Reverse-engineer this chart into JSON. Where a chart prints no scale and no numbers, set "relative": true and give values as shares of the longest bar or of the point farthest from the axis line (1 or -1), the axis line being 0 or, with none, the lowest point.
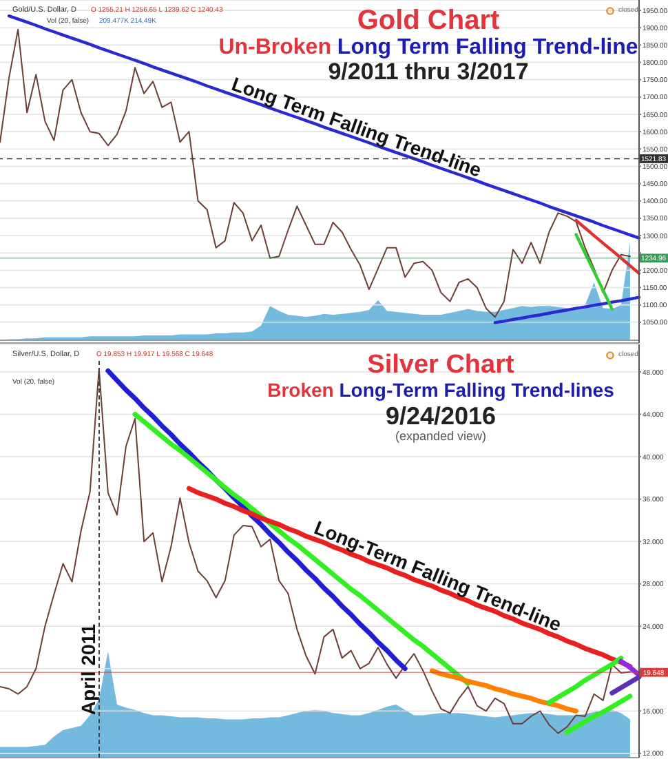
{
  "chart_data": [
    {
      "type": "line",
      "title": "Gold Chart",
      "subtitle": "Un-Broken Long Term Falling Trend-line",
      "annotations": [
        "9/2011 thru 3/2017",
        "Long Term Falling Trend-line",
        "Gold/U.S. Dollar, D",
        "O 1255.21 H 1256.65 L 1239.62 C 1240.43",
        "Vol (20, false)",
        "209.477K 214.49K",
        "closed"
      ],
      "categories": [
        null,
        null,
        null,
        null,
        null,
        null,
        null,
        null,
        null,
        null,
        null,
        null,
        null,
        null,
        null,
        null,
        null,
        null,
        null,
        null,
        null,
        null,
        null,
        null,
        null,
        null,
        null,
        null,
        null,
        null,
        null,
        null,
        null,
        null,
        null,
        null,
        null,
        null,
        null,
        null,
        null,
        null,
        null,
        null,
        null,
        null,
        null,
        null,
        null,
        null,
        null,
        null,
        null,
        null,
        null,
        null,
        null,
        null,
        null,
        null,
        null,
        null,
        null,
        null,
        null,
        null,
        null,
        null,
        null,
        null,
        null,
        null
      ],
      "series": [
        {
          "color": "#6b3f35",
          "values": [
            1570,
            1755,
            1895,
            1655,
            1765,
            1630,
            1575,
            1720,
            1750,
            1655,
            1600,
            1595,
            1560,
            1592,
            1660,
            1785,
            1710,
            1745,
            1670,
            1685,
            1570,
            1600,
            1400,
            1375,
            1265,
            1285,
            1395,
            1365,
            1285,
            1330,
            1235,
            1240,
            1315,
            1385,
            1330,
            1275,
            1275,
            1338,
            1310,
            1260,
            1215,
            1145,
            1205,
            1265,
            1265,
            1180,
            1220,
            1225,
            1200,
            1135,
            1110,
            1165,
            1175,
            1150,
            1090,
            1065,
            1110,
            1260,
            1220,
            1280,
            1220,
            1310,
            1365,
            1356,
            1340,
            1265,
            1205,
            1135,
            1200,
            1245,
            1240,
            null
          ]
        },
        {
          "color": "#2a2ad0",
          "values": [
            null,
            1934,
            1925,
            1916,
            1907,
            1897,
            1888,
            1879,
            1870,
            1861,
            1852,
            1842,
            1833,
            1824,
            1815,
            1806,
            1797,
            1787,
            1778,
            1769,
            1760,
            1751,
            1742,
            1732,
            1723,
            1714,
            1705,
            1696,
            1687,
            1678,
            1668,
            1659,
            1650,
            1641,
            1632,
            1623,
            1613,
            1604,
            1595,
            1586,
            1577,
            1568,
            1558,
            1549,
            1540,
            1531,
            1522,
            1513,
            1503,
            1494,
            1485,
            1476,
            1467,
            1458,
            1448,
            1439,
            1430,
            1421,
            1412,
            1403,
            1394,
            1384,
            1375,
            1366,
            1357,
            1348,
            1339,
            1329,
            1320,
            1311,
            1302,
            1293
          ]
        },
        {
          "color": "#2a2ad0",
          "values": [
            null,
            null,
            null,
            null,
            null,
            null,
            null,
            null,
            null,
            null,
            null,
            null,
            null,
            null,
            null,
            null,
            null,
            null,
            null,
            null,
            null,
            null,
            null,
            null,
            null,
            null,
            null,
            null,
            null,
            null,
            null,
            null,
            null,
            null,
            null,
            null,
            null,
            null,
            null,
            null,
            null,
            null,
            null,
            null,
            null,
            null,
            null,
            null,
            null,
            null,
            null,
            null,
            null,
            null,
            null,
            1049,
            1053,
            1058,
            1062,
            1067,
            1071,
            1076,
            1081,
            1085,
            1090,
            1094,
            1099,
            1103,
            1108,
            1112,
            1117,
            1122
          ]
        },
        {
          "color": "#e03030",
          "values": [
            null,
            null,
            null,
            null,
            null,
            null,
            null,
            null,
            null,
            null,
            null,
            null,
            null,
            null,
            null,
            null,
            null,
            null,
            null,
            null,
            null,
            null,
            null,
            null,
            null,
            null,
            null,
            null,
            null,
            null,
            null,
            null,
            null,
            null,
            null,
            null,
            null,
            null,
            null,
            null,
            null,
            null,
            null,
            null,
            null,
            null,
            null,
            null,
            null,
            null,
            null,
            null,
            null,
            null,
            null,
            null,
            null,
            null,
            null,
            null,
            null,
            null,
            null,
            null,
            1344,
            1322,
            1300,
            1278,
            1257,
            1235,
            1213,
            1191
          ]
        },
        {
          "color": "#33cc33",
          "values": [
            null,
            null,
            null,
            null,
            null,
            null,
            null,
            null,
            null,
            null,
            null,
            null,
            null,
            null,
            null,
            null,
            null,
            null,
            null,
            null,
            null,
            null,
            null,
            null,
            null,
            null,
            null,
            null,
            null,
            null,
            null,
            null,
            null,
            null,
            null,
            null,
            null,
            null,
            null,
            null,
            null,
            null,
            null,
            null,
            null,
            null,
            null,
            null,
            null,
            null,
            null,
            null,
            null,
            null,
            null,
            null,
            null,
            null,
            null,
            null,
            null,
            null,
            null,
            null,
            1303,
            1249,
            1196,
            1142,
            1088,
            null,
            null,
            null
          ]
        }
      ],
      "ylim": [
        990,
        1980
      ],
      "yticks": [
        {
          "value": 1050,
          "label": "1050.00"
        },
        {
          "value": 1100,
          "label": "1100.00"
        },
        {
          "value": 1150,
          "label": "1150.00"
        },
        {
          "value": 1200,
          "label": "1200.00"
        },
        {
          "value": 1250,
          "label": null
        },
        {
          "value": 1300,
          "label": "1300.00"
        },
        {
          "value": 1350,
          "label": "1350.00"
        },
        {
          "value": 1400,
          "label": "1400.00"
        },
        {
          "value": 1450,
          "label": "1450.00"
        },
        {
          "value": 1500,
          "label": "1500.00"
        },
        {
          "value": 1550,
          "label": "1550.00"
        },
        {
          "value": 1600,
          "label": "1600.00"
        },
        {
          "value": 1650,
          "label": "1650.00"
        },
        {
          "value": 1700,
          "label": "1700.00"
        },
        {
          "value": 1750,
          "label": "1750.00"
        },
        {
          "value": 1800,
          "label": "1800.00"
        },
        {
          "value": 1850,
          "label": "1850.00"
        },
        {
          "value": 1900,
          "label": "1900.00"
        },
        {
          "value": 1950,
          "label": "1950.00"
        }
      ],
      "grid": "y",
      "tick_labels": "y",
      "ref_lines": [
        {
          "axis": "y",
          "value": 1521.83,
          "label": "1521.83",
          "color": "#333333",
          "line_style": "dashed"
        },
        {
          "axis": "y",
          "value": 1234.96,
          "label": "1234.96",
          "color": "#3d9a5b"
        }
      ]
    },
    {
      "type": "area",
      "relative": true,
      "categories": [
        null,
        null,
        null,
        null,
        null,
        null,
        null,
        null,
        null,
        null,
        null,
        null,
        null,
        null,
        null,
        null,
        null,
        null,
        null,
        null,
        null,
        null,
        null,
        null,
        null,
        null,
        null,
        null,
        null,
        null,
        null,
        null,
        null,
        null,
        null,
        null,
        null,
        null,
        null,
        null,
        null,
        null,
        null,
        null,
        null,
        null,
        null,
        null,
        null,
        null,
        null,
        null,
        null,
        null,
        null,
        null,
        null,
        null,
        null,
        null,
        null,
        null,
        null,
        null,
        null,
        null,
        null,
        null,
        null,
        null,
        null,
        null
      ],
      "values": [
        0,
        0.01,
        0.01,
        0.02,
        0.02,
        0.03,
        0.03,
        0.03,
        0.03,
        0.03,
        0.04,
        0.04,
        0.04,
        0.04,
        0.04,
        0.04,
        0.05,
        0.05,
        0.05,
        0.05,
        0.06,
        0.06,
        0.06,
        0.06,
        0.07,
        0.07,
        0.08,
        0.08,
        0.09,
        0.15,
        0.35,
        0.3,
        0.26,
        0.25,
        0.24,
        0.25,
        0.27,
        0.26,
        0.27,
        0.28,
        0.29,
        0.31,
        0.41,
        0.3,
        0.29,
        0.28,
        0.27,
        0.26,
        0.26,
        0.26,
        0.28,
        0.3,
        0.32,
        0.3,
        0.29,
        0.29,
        0.31,
        0.33,
        0.35,
        0.34,
        0.35,
        0.35,
        0.34,
        0.33,
        0.32,
        0.36,
        0.59,
        0.33,
        0.32,
        0.36,
        1,
        null
      ],
      "color": "#5aaed8",
      "tick_labels": false
    },
    {
      "type": "line",
      "title": "Silver Chart",
      "subtitle": "Broken Long-Term Falling Trend-lines",
      "annotations": [
        "9/24/2016",
        "(expanded view)",
        "Long-Term Falling Trend-line",
        "Silver/U.S. Dollar, D",
        "O 19.853 H 19.917 L 19.568 C 19.648",
        "Vol (20, false)",
        "closed",
        "April 2011"
      ],
      "categories": [
        null,
        null,
        null,
        null,
        null,
        null,
        null,
        null,
        null,
        null,
        null,
        null,
        null,
        null,
        null,
        null,
        null,
        null,
        null,
        null,
        null,
        null,
        null,
        null,
        null,
        null,
        null,
        null,
        null,
        null,
        null,
        null,
        null,
        null,
        null,
        null,
        null,
        null,
        null,
        null,
        null,
        null,
        null,
        null,
        null,
        null,
        null,
        null,
        null,
        null,
        null,
        null,
        null,
        null,
        null,
        null,
        null,
        null,
        null,
        null,
        null,
        null,
        null,
        null,
        null,
        null,
        null,
        null,
        null,
        null,
        null,
        null
      ],
      "series": [
        {
          "color": "#6b3f35",
          "values": [
            18.3,
            18.1,
            17.6,
            18.3,
            20.0,
            24.0,
            27.0,
            29.9,
            28.2,
            33.0,
            36.7,
            48.3,
            36.6,
            34.5,
            41.0,
            43.6,
            32.0,
            32.8,
            28.2,
            31.5,
            36.1,
            31.9,
            29.2,
            28.3,
            26.7,
            28.3,
            32.6,
            33.5,
            33.4,
            31.5,
            32.2,
            28.3,
            27.1,
            23.7,
            21.2,
            19.5,
            23.0,
            23.7,
            21.0,
            21.7,
            20.0,
            20.5,
            22.0,
            20.4,
            19.1,
            20.3,
            21.4,
            19.8,
            17.9,
            16.2,
            15.8,
            17.2,
            18.3,
            16.5,
            16.0,
            17.2,
            16.7,
            14.8,
            14.8,
            15.5,
            16.0,
            14.7,
            13.9,
            14.5,
            15.6,
            15.5,
            17.6,
            17.0,
            20.4,
            19.6,
            19.7,
            null
          ]
        },
        {
          "color": "#1f1fd6",
          "values": [
            null,
            null,
            null,
            null,
            null,
            null,
            null,
            null,
            null,
            null,
            null,
            null,
            48.1,
            47.2,
            46.3,
            45.5,
            44.6,
            43.8,
            42.9,
            42.1,
            41.2,
            40.4,
            39.5,
            38.7,
            37.8,
            37.0,
            36.1,
            35.3,
            34.4,
            33.6,
            32.7,
            31.9,
            31.0,
            30.2,
            29.3,
            28.5,
            27.6,
            26.8,
            25.9,
            25.1,
            24.2,
            23.4,
            22.5,
            21.7,
            20.8,
            20.0,
            null,
            null,
            null,
            null,
            null,
            null,
            null,
            null,
            null,
            null,
            null,
            null,
            null,
            null,
            null,
            null,
            null,
            null,
            null,
            null,
            null,
            null,
            null,
            null,
            null,
            null
          ]
        },
        {
          "color": "#33ee22",
          "values": [
            null,
            null,
            null,
            null,
            null,
            null,
            null,
            null,
            null,
            null,
            null,
            null,
            null,
            null,
            null,
            44.0,
            43.3,
            42.6,
            41.9,
            41.2,
            40.6,
            39.9,
            39.2,
            38.5,
            37.8,
            37.1,
            36.4,
            35.8,
            35.1,
            34.4,
            33.7,
            33.0,
            32.3,
            31.7,
            31.0,
            30.3,
            29.6,
            28.9,
            28.2,
            27.5,
            26.9,
            26.2,
            25.5,
            24.8,
            24.1,
            23.4,
            22.7,
            22.1,
            21.4,
            20.7,
            20.0,
            19.3,
            18.6,
            null,
            null,
            null,
            null,
            null,
            null,
            null,
            null,
            null,
            null,
            null,
            null,
            null,
            null,
            null,
            null,
            null,
            null,
            null
          ]
        },
        {
          "color": "#e82020",
          "values": [
            null,
            null,
            null,
            null,
            null,
            null,
            null,
            null,
            null,
            null,
            null,
            null,
            null,
            null,
            null,
            null,
            null,
            null,
            null,
            null,
            null,
            37.0,
            36.6,
            36.3,
            36.0,
            35.6,
            35.3,
            34.9,
            34.6,
            34.2,
            33.9,
            33.6,
            33.2,
            32.9,
            32.5,
            32.2,
            31.9,
            31.5,
            31.2,
            30.8,
            30.5,
            30.1,
            29.8,
            29.5,
            29.1,
            28.8,
            28.4,
            28.1,
            27.8,
            27.4,
            27.1,
            26.7,
            26.4,
            26.0,
            25.7,
            25.4,
            25.0,
            24.7,
            24.3,
            24.0,
            23.7,
            23.3,
            23.0,
            22.6,
            22.3,
            21.9,
            21.6,
            21.3,
            20.9,
            20.6,
            20.2,
            null
          ]
        },
        {
          "color": "#ff8000",
          "values": [
            null,
            null,
            null,
            null,
            null,
            null,
            null,
            null,
            null,
            null,
            null,
            null,
            null,
            null,
            null,
            null,
            null,
            null,
            null,
            null,
            null,
            null,
            null,
            null,
            null,
            null,
            null,
            null,
            null,
            null,
            null,
            null,
            null,
            null,
            null,
            null,
            null,
            null,
            null,
            null,
            null,
            null,
            null,
            null,
            null,
            null,
            null,
            null,
            19.8,
            19.5,
            19.3,
            19.1,
            18.8,
            18.6,
            18.4,
            18.1,
            17.9,
            17.6,
            17.4,
            17.2,
            16.9,
            16.7,
            16.5,
            16.2,
            16.0,
            null,
            null,
            null,
            null,
            null,
            null,
            null
          ]
        },
        {
          "color": "#33ee22",
          "values": [
            null,
            null,
            null,
            null,
            null,
            null,
            null,
            null,
            null,
            null,
            null,
            null,
            null,
            null,
            null,
            null,
            null,
            null,
            null,
            null,
            null,
            null,
            null,
            null,
            null,
            null,
            null,
            null,
            null,
            null,
            null,
            null,
            null,
            null,
            null,
            null,
            null,
            null,
            null,
            null,
            null,
            null,
            null,
            null,
            null,
            null,
            null,
            null,
            null,
            null,
            null,
            null,
            null,
            null,
            null,
            null,
            null,
            null,
            null,
            null,
            null,
            16.8,
            17.3,
            17.8,
            18.3,
            18.9,
            19.4,
            19.9,
            20.4,
            21.0,
            null,
            null
          ]
        },
        {
          "color": "#33ee22",
          "values": [
            null,
            null,
            null,
            null,
            null,
            null,
            null,
            null,
            null,
            null,
            null,
            null,
            null,
            null,
            null,
            null,
            null,
            null,
            null,
            null,
            null,
            null,
            null,
            null,
            null,
            null,
            null,
            null,
            null,
            null,
            null,
            null,
            null,
            null,
            null,
            null,
            null,
            null,
            null,
            null,
            null,
            null,
            null,
            null,
            null,
            null,
            null,
            null,
            null,
            null,
            null,
            null,
            null,
            null,
            null,
            null,
            null,
            null,
            null,
            null,
            null,
            null,
            null,
            14.0,
            14.5,
            15.0,
            15.5,
            15.9,
            16.4,
            16.9,
            17.4,
            null
          ]
        },
        {
          "color": "#8a2be2",
          "values": [
            null,
            null,
            null,
            null,
            null,
            null,
            null,
            null,
            null,
            null,
            null,
            null,
            null,
            null,
            null,
            null,
            null,
            null,
            null,
            null,
            null,
            null,
            null,
            null,
            null,
            null,
            null,
            null,
            null,
            null,
            null,
            null,
            null,
            null,
            null,
            null,
            null,
            null,
            null,
            null,
            null,
            null,
            null,
            null,
            null,
            null,
            null,
            null,
            null,
            null,
            null,
            null,
            null,
            null,
            null,
            null,
            null,
            null,
            null,
            null,
            null,
            null,
            null,
            null,
            null,
            null,
            null,
            null,
            null,
            20.7,
            20.1,
            19.4
          ]
        },
        {
          "color": "#5a30b8",
          "values": [
            null,
            null,
            null,
            null,
            null,
            null,
            null,
            null,
            null,
            null,
            null,
            null,
            null,
            null,
            null,
            null,
            null,
            null,
            null,
            null,
            null,
            null,
            null,
            null,
            null,
            null,
            null,
            null,
            null,
            null,
            null,
            null,
            null,
            null,
            null,
            null,
            null,
            null,
            null,
            null,
            null,
            null,
            null,
            null,
            null,
            null,
            null,
            null,
            null,
            null,
            null,
            null,
            null,
            null,
            null,
            null,
            null,
            null,
            null,
            null,
            null,
            null,
            null,
            null,
            null,
            null,
            null,
            null,
            17.7,
            18.2,
            18.7,
            19.2
          ]
        }
      ],
      "ylim": [
        11.6,
        50.6
      ],
      "yticks": [
        {
          "value": 12,
          "label": "12.000"
        },
        {
          "value": 16,
          "label": "16.000"
        },
        {
          "value": 20,
          "label": null
        },
        {
          "value": 24,
          "label": "24.000"
        },
        {
          "value": 28,
          "label": "28.000"
        },
        {
          "value": 32,
          "label": "32.000"
        },
        {
          "value": 36,
          "label": "36.000"
        },
        {
          "value": 40,
          "label": "40.000"
        },
        {
          "value": 44,
          "label": "44.000"
        },
        {
          "value": 48,
          "label": "48.000"
        }
      ],
      "grid": "y",
      "tick_labels": "y",
      "ref_lines": [
        {
          "axis": "y",
          "value": 19.648,
          "label": "19.648",
          "color": "#d93b3b"
        }
      ]
    },
    {
      "type": "area",
      "relative": true,
      "categories": [
        null,
        null,
        null,
        null,
        null,
        null,
        null,
        null,
        null,
        null,
        null,
        null,
        null,
        null,
        null,
        null,
        null,
        null,
        null,
        null,
        null,
        null,
        null,
        null,
        null,
        null,
        null,
        null,
        null,
        null,
        null,
        null,
        null,
        null,
        null,
        null,
        null,
        null,
        null,
        null,
        null,
        null,
        null,
        null,
        null,
        null,
        null,
        null,
        null,
        null,
        null,
        null,
        null,
        null,
        null,
        null,
        null,
        null,
        null,
        null,
        null,
        null,
        null,
        null,
        null,
        null,
        null,
        null,
        null,
        null,
        null,
        null
      ],
      "values": [
        0.1,
        0.1,
        0.1,
        0.1,
        0.11,
        0.12,
        0.2,
        0.26,
        0.28,
        0.3,
        0.4,
        0.55,
        1,
        0.5,
        0.47,
        0.45,
        0.42,
        0.4,
        0.4,
        0.39,
        0.38,
        0.38,
        0.38,
        0.37,
        0.37,
        0.36,
        0.36,
        0.36,
        0.37,
        0.37,
        0.38,
        0.38,
        0.4,
        0.42,
        0.44,
        0.45,
        0.44,
        0.42,
        0.41,
        0.4,
        0.4,
        0.42,
        0.45,
        0.48,
        0.5,
        0.45,
        0.4,
        0.4,
        0.41,
        0.42,
        0.42,
        0.42,
        0.41,
        0.4,
        0.39,
        0.38,
        0.39,
        0.4,
        0.41,
        0.42,
        0.42,
        0.41,
        0.4,
        0.4,
        0.4,
        0.41,
        0.43,
        0.45,
        0.45,
        0.42,
        0.36,
        null
      ],
      "color": "#5aaed8",
      "tick_labels": false
    }
  ]
}
